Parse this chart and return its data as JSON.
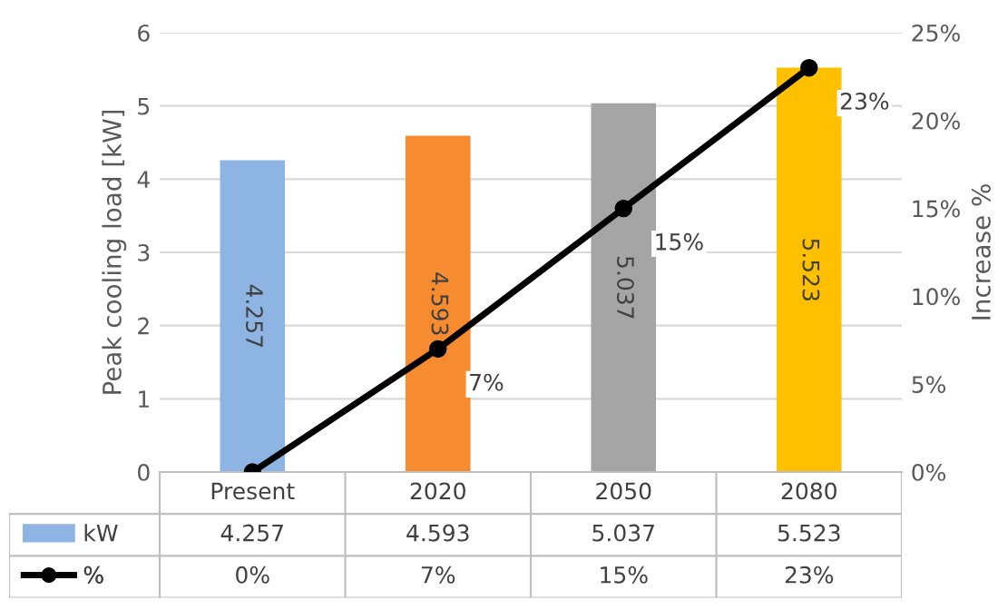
{
  "chart_data": {
    "type": "bar",
    "categories": [
      "Present",
      "2020",
      "2050",
      "2080"
    ],
    "series": [
      {
        "name": "kW",
        "colors": [
          "#8eb4e3",
          "#f68b30",
          "#a5a5a5",
          "#ffc000"
        ],
        "values": [
          4.257,
          4.593,
          5.037,
          5.523
        ],
        "value_labels": [
          "4.257",
          "4.593",
          "5.037",
          "5.523"
        ]
      },
      {
        "name": "%",
        "type": "line",
        "axis": "y2",
        "color": "#000000",
        "values": [
          0,
          7,
          15,
          23
        ],
        "value_labels": [
          "0%",
          "7%",
          "15%",
          "23%"
        ]
      }
    ],
    "ylabel": "Peak cooling load [kW]",
    "y2label": "Increase %",
    "ylim": [
      0,
      6
    ],
    "yticks": [
      0,
      1,
      2,
      3,
      4,
      5,
      6
    ],
    "y2lim": [
      0,
      25
    ],
    "y2ticks": [
      {
        "value": 0,
        "label": "0%"
      },
      {
        "value": 5,
        "label": "5%"
      },
      {
        "value": 10,
        "label": "10%"
      },
      {
        "value": 15,
        "label": "15%"
      },
      {
        "value": 20,
        "label": "20%"
      },
      {
        "value": 25,
        "label": "25%"
      }
    ],
    "grid": "y",
    "marker": "circle",
    "line_style": "solid",
    "legend": "bottom"
  }
}
